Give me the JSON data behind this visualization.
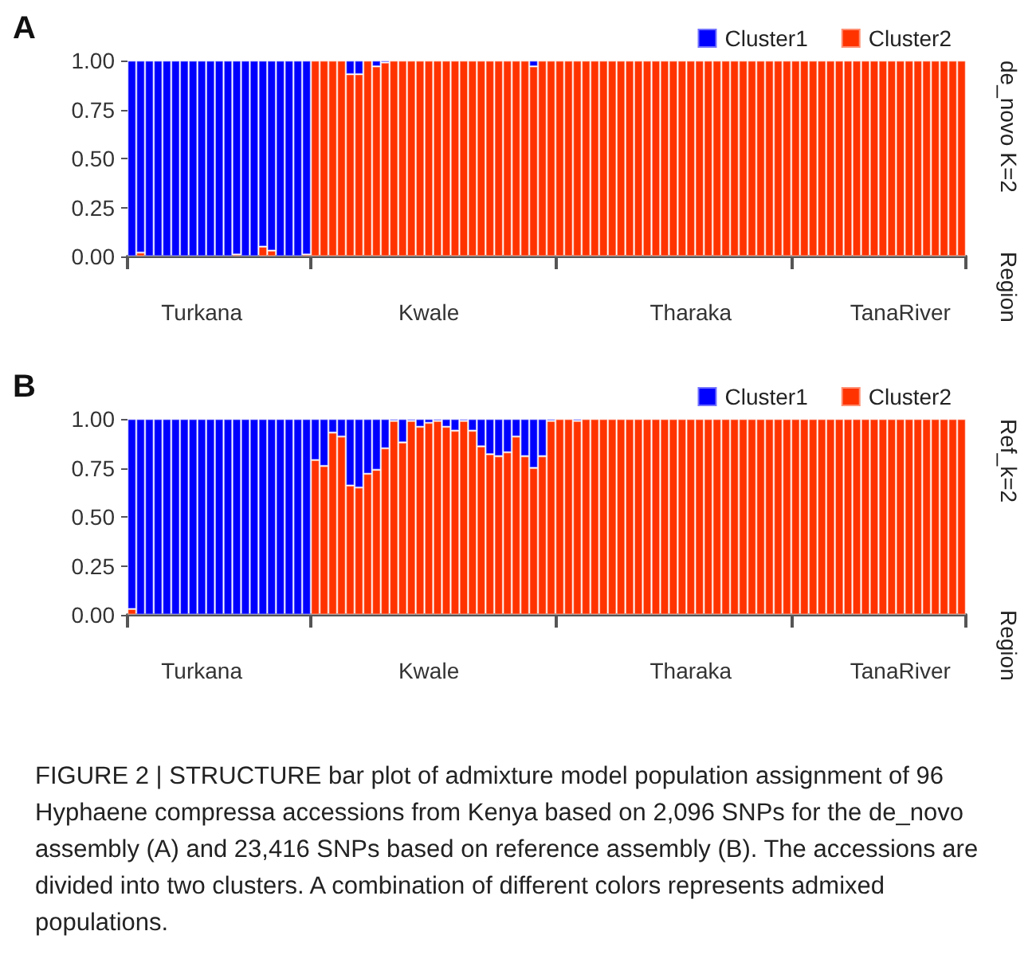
{
  "chart_data": [
    {
      "type": "bar",
      "title": "A",
      "ylabel": "de_novo K=2",
      "annotations": [
        "Region"
      ],
      "stacked": true,
      "grid": false,
      "legend": "top right",
      "ylim": [
        0,
        1
      ],
      "yticks": [
        {
          "value": 0,
          "label": "0.00"
        },
        {
          "value": 0.25,
          "label": "0.25"
        },
        {
          "value": 0.5,
          "label": "0.50"
        },
        {
          "value": 0.75,
          "label": "0.75"
        },
        {
          "value": 1,
          "label": "1.00"
        }
      ],
      "categories": [
        null,
        null,
        null,
        null,
        null,
        null,
        null,
        null,
        "Turkana",
        null,
        null,
        null,
        null,
        null,
        null,
        null,
        null,
        null,
        null,
        null,
        null,
        null,
        null,
        null,
        null,
        null,
        null,
        null,
        null,
        null,
        null,
        null,
        null,
        null,
        "Kwale",
        null,
        null,
        null,
        null,
        null,
        null,
        null,
        null,
        null,
        null,
        null,
        null,
        null,
        null,
        null,
        null,
        null,
        null,
        null,
        null,
        null,
        null,
        null,
        null,
        null,
        null,
        null,
        null,
        null,
        "Tharaka",
        null,
        null,
        null,
        null,
        null,
        null,
        null,
        null,
        null,
        null,
        null,
        null,
        null,
        null,
        null,
        null,
        null,
        null,
        null,
        null,
        null,
        null,
        null,
        "TanaRiver",
        null,
        null,
        null,
        null,
        null,
        null,
        null
      ],
      "series": [
        {
          "name": "Cluster2",
          "color": "#ff3300",
          "values": [
            0,
            0.02,
            0,
            0,
            0,
            0,
            0,
            0,
            0,
            0,
            0,
            0,
            0.01,
            0,
            0,
            0.05,
            0.03,
            0,
            0,
            0,
            0.01,
            1,
            1,
            1,
            1,
            0.93,
            0.93,
            1,
            0.97,
            0.99,
            1,
            1,
            1,
            1,
            1,
            1,
            1,
            1,
            1,
            1,
            1,
            1,
            1,
            1,
            1,
            1,
            0.97,
            1,
            1,
            1,
            1,
            1,
            1,
            1,
            1,
            1,
            1,
            1,
            1,
            1,
            1,
            1,
            1,
            1,
            1,
            1,
            1,
            1,
            1,
            1,
            1,
            1,
            1,
            1,
            1,
            1,
            1,
            1,
            1,
            1,
            1,
            1,
            1,
            1,
            1,
            1,
            1,
            1,
            1,
            1,
            1,
            1,
            1,
            1,
            1,
            1
          ]
        },
        {
          "name": "Cluster1",
          "color": "#0000ff",
          "values": [
            1,
            0.98,
            1,
            1,
            1,
            1,
            1,
            1,
            1,
            1,
            1,
            1,
            0.99,
            1,
            1,
            0.95,
            0.97,
            1,
            1,
            1,
            0.99,
            0,
            0,
            0,
            0,
            0.07,
            0.07,
            0,
            0.03,
            0.01,
            0,
            0,
            0,
            0,
            0,
            0,
            0,
            0,
            0,
            0,
            0,
            0,
            0,
            0,
            0,
            0,
            0.03,
            0,
            0,
            0,
            0,
            0,
            0,
            0,
            0,
            0,
            0,
            0,
            0,
            0,
            0,
            0,
            0,
            0,
            0,
            0,
            0,
            0,
            0,
            0,
            0,
            0,
            0,
            0,
            0,
            0,
            0,
            0,
            0,
            0,
            0,
            0,
            0,
            0,
            0,
            0,
            0,
            0,
            0,
            0,
            0,
            0,
            0,
            0,
            0,
            0
          ]
        }
      ]
    },
    {
      "type": "bar",
      "title": "B",
      "ylabel": "Ref_k=2",
      "stacked": true,
      "grid": false,
      "legend": "top right",
      "ylim": [
        0,
        1
      ],
      "yticks": [
        {
          "value": 0,
          "label": "0.00"
        },
        {
          "value": 0.25,
          "label": "0.25"
        },
        {
          "value": 0.5,
          "label": "0.50"
        },
        {
          "value": 0.75,
          "label": "0.75"
        },
        {
          "value": 1,
          "label": "1.00"
        }
      ],
      "categories": [
        null,
        null,
        null,
        null,
        null,
        null,
        null,
        null,
        "Turkana",
        null,
        null,
        null,
        null,
        null,
        null,
        null,
        null,
        null,
        null,
        null,
        null,
        null,
        null,
        null,
        null,
        null,
        null,
        null,
        null,
        null,
        null,
        null,
        null,
        null,
        "Kwale",
        null,
        null,
        null,
        null,
        null,
        null,
        null,
        null,
        null,
        null,
        null,
        null,
        null,
        null,
        null,
        null,
        null,
        null,
        null,
        null,
        null,
        null,
        null,
        null,
        null,
        null,
        null,
        null,
        null,
        "Tharaka",
        null,
        null,
        null,
        null,
        null,
        null,
        null,
        null,
        null,
        null,
        null,
        null,
        null,
        null,
        null,
        null,
        null,
        null,
        null,
        null,
        null,
        null,
        null,
        "TanaRiver",
        null,
        null,
        null,
        null,
        null,
        null,
        null
      ],
      "series": [
        {
          "name": "Cluster2",
          "color": "#ff3300",
          "values": [
            0.03,
            0,
            0,
            0,
            0,
            0,
            0,
            0,
            0,
            0,
            0,
            0,
            0,
            0,
            0,
            0,
            0,
            0,
            0,
            0,
            0,
            0.79,
            0.76,
            0.93,
            0.91,
            0.66,
            0.65,
            0.72,
            0.74,
            0.85,
            0.99,
            0.88,
            0.99,
            0.96,
            0.98,
            0.99,
            0.96,
            0.94,
            0.99,
            0.94,
            0.86,
            0.82,
            0.81,
            0.83,
            0.91,
            0.81,
            0.75,
            0.81,
            0.99,
            1,
            1,
            0.99,
            1,
            1,
            1,
            1,
            1,
            1,
            1,
            1,
            1,
            1,
            1,
            1,
            1,
            1,
            1,
            1,
            1,
            1,
            1,
            1,
            1,
            1,
            1,
            1,
            1,
            1,
            1,
            1,
            1,
            1,
            1,
            1,
            1,
            1,
            1,
            1,
            1,
            1,
            1,
            1,
            1,
            1,
            1,
            1
          ]
        },
        {
          "name": "Cluster1",
          "color": "#0000ff",
          "values": [
            0.97,
            1,
            1,
            1,
            1,
            1,
            1,
            1,
            1,
            1,
            1,
            1,
            1,
            1,
            1,
            1,
            1,
            1,
            1,
            1,
            1,
            0.21,
            0.24,
            0.07,
            0.09,
            0.34,
            0.35,
            0.28,
            0.26,
            0.15,
            0.01,
            0.12,
            0.01,
            0.04,
            0.02,
            0.01,
            0.04,
            0.06,
            0.01,
            0.06,
            0.14,
            0.18,
            0.19,
            0.17,
            0.09,
            0.19,
            0.25,
            0.19,
            0.01,
            0,
            0,
            0.01,
            0,
            0,
            0,
            0,
            0,
            0,
            0,
            0,
            0,
            0,
            0,
            0,
            0,
            0,
            0,
            0,
            0,
            0,
            0,
            0,
            0,
            0,
            0,
            0,
            0,
            0,
            0,
            0,
            0,
            0,
            0,
            0,
            0,
            0,
            0,
            0,
            0,
            0,
            0,
            0,
            0,
            0,
            0,
            0
          ]
        }
      ],
      "annotations": [
        "Region",
        "FIGURE 2 | STRUCTURE bar plot of admixture model population assignment of 96 Hyphaene compressa accessions from Kenya based on 2,096 SNPs for the de_novo assembly (A) and 23,416 SNPs based on reference assembly (B). The accessions are divided into two clusters. A combination of different colors represents admixed populations."
      ]
    }
  ]
}
